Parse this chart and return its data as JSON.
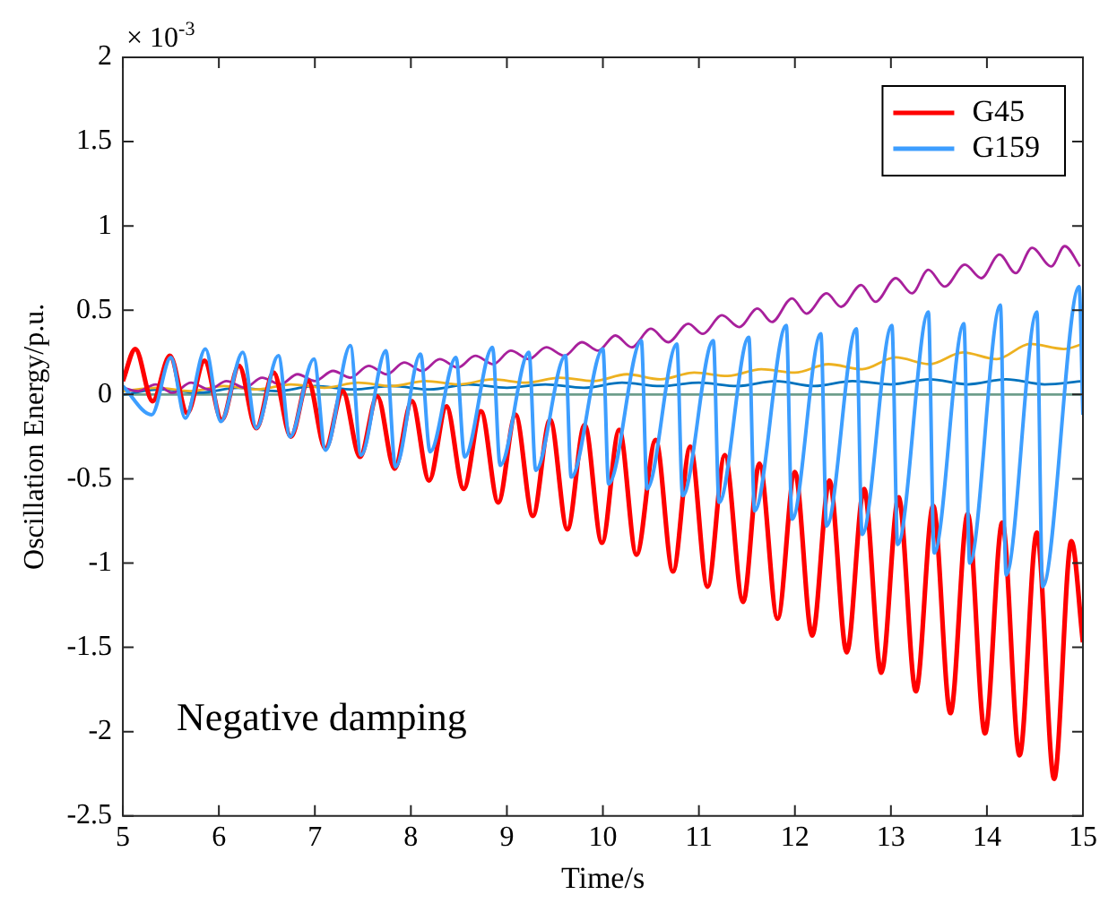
{
  "chart_data": {
    "type": "line",
    "xlabel": "Time/s",
    "ylabel": "Oscillation Energy/p.u.",
    "annotations": [
      "× 10$^{-3}$",
      "Negative damping"
    ],
    "xlim": [
      5,
      15
    ],
    "xticks": [
      5,
      6,
      7,
      8,
      9,
      10,
      11,
      12,
      13,
      14,
      15
    ],
    "ylim": [
      -2.5,
      2
    ],
    "yticks": [
      -2.5,
      -2,
      -1.5,
      -1,
      -0.5,
      0,
      0.5,
      1,
      1.5,
      2
    ],
    "grid": false,
    "legend": "top right",
    "marker": "none",
    "line_style": "solid",
    "series": [
      {
        "name": "G45",
        "color": "#ff0000",
        "x": [
          5,
          5.13,
          5.31,
          5.49,
          5.67,
          5.85,
          6.03,
          6.21,
          6.39,
          6.57,
          6.75,
          6.93,
          7.11,
          7.29,
          7.47,
          7.65,
          7.83,
          8.01,
          8.19,
          8.37,
          8.55,
          8.73,
          8.91,
          9.09,
          9.27,
          9.45,
          9.63,
          9.81,
          9.99,
          10.17,
          10.35,
          10.55,
          10.73,
          10.91,
          11.09,
          11.27,
          11.46,
          11.63,
          11.82,
          12,
          12.18,
          12.36,
          12.54,
          12.72,
          12.9,
          13.08,
          13.26,
          13.44,
          13.62,
          13.8,
          13.98,
          14.16,
          14.34,
          14.52,
          14.7,
          14.88,
          15
        ],
        "values": [
          0.08,
          0.27,
          -0.04,
          0.23,
          -0.11,
          0.2,
          -0.15,
          0.17,
          -0.2,
          0.13,
          -0.25,
          0.08,
          -0.32,
          0.02,
          -0.37,
          -0.01,
          -0.44,
          -0.04,
          -0.51,
          -0.07,
          -0.56,
          -0.1,
          -0.64,
          -0.12,
          -0.72,
          -0.15,
          -0.8,
          -0.18,
          -0.88,
          -0.21,
          -0.95,
          -0.27,
          -1.05,
          -0.31,
          -1.14,
          -0.36,
          -1.23,
          -0.41,
          -1.33,
          -0.46,
          -1.43,
          -0.51,
          -1.53,
          -0.56,
          -1.65,
          -0.61,
          -1.76,
          -0.66,
          -1.89,
          -0.71,
          -2.01,
          -0.76,
          -2.14,
          -0.82,
          -2.28,
          -0.87,
          -1.47
        ]
      },
      {
        "name": "G159",
        "color": "#3d9eff",
        "x": [
          5,
          5.3,
          5.5,
          5.65,
          5.86,
          6.02,
          6.25,
          6.39,
          6.62,
          6.74,
          6.99,
          7.11,
          7.37,
          7.48,
          7.74,
          7.84,
          8.1,
          8.2,
          8.47,
          8.56,
          8.85,
          8.93,
          9.23,
          9.3,
          9.61,
          9.67,
          10,
          10.06,
          10.4,
          10.46,
          10.77,
          10.83,
          11.15,
          11.21,
          11.52,
          11.58,
          11.91,
          11.97,
          12.27,
          12.33,
          12.64,
          12.7,
          13.01,
          13.07,
          13.39,
          13.45,
          13.76,
          13.82,
          14.14,
          14.2,
          14.52,
          14.58,
          14.96,
          15
        ],
        "values": [
          0.05,
          -0.12,
          0.22,
          -0.14,
          0.27,
          -0.16,
          0.25,
          -0.2,
          0.23,
          -0.25,
          0.21,
          -0.33,
          0.29,
          -0.36,
          0.26,
          -0.43,
          0.24,
          -0.34,
          0.22,
          -0.37,
          0.28,
          -0.42,
          0.25,
          -0.45,
          0.23,
          -0.49,
          0.27,
          -0.53,
          0.32,
          -0.56,
          0.3,
          -0.6,
          0.32,
          -0.64,
          0.34,
          -0.69,
          0.41,
          -0.74,
          0.36,
          -0.78,
          0.39,
          -0.83,
          0.41,
          -0.89,
          0.49,
          -0.94,
          0.42,
          -1,
          0.53,
          -1.07,
          0.49,
          -1.14,
          0.64,
          -0.12
        ]
      },
      {
        "color": "#a8209c",
        "x": [
          5,
          5.16,
          5.34,
          5.52,
          5.71,
          5.9,
          6.08,
          6.27,
          6.45,
          6.64,
          6.82,
          7,
          7.19,
          7.37,
          7.56,
          7.75,
          7.93,
          8.12,
          8.3,
          8.49,
          8.67,
          8.86,
          9.04,
          9.23,
          9.41,
          9.6,
          9.78,
          9.95,
          10.13,
          10.3,
          10.5,
          10.68,
          10.89,
          11.04,
          11.24,
          11.42,
          11.61,
          11.76,
          11.97,
          12.12,
          12.33,
          12.48,
          12.69,
          12.84,
          13.05,
          13.22,
          13.39,
          13.56,
          13.77,
          13.94,
          14.13,
          14.3,
          14.47,
          14.67,
          14.81,
          14.97
        ],
        "values": [
          0.04,
          0.02,
          0.06,
          0.01,
          0.07,
          0.03,
          0.08,
          0.04,
          0.1,
          0.06,
          0.12,
          0.08,
          0.14,
          0.1,
          0.17,
          0.12,
          0.19,
          0.14,
          0.21,
          0.16,
          0.23,
          0.18,
          0.26,
          0.21,
          0.28,
          0.23,
          0.31,
          0.26,
          0.35,
          0.28,
          0.39,
          0.31,
          0.42,
          0.36,
          0.47,
          0.4,
          0.51,
          0.43,
          0.57,
          0.48,
          0.6,
          0.52,
          0.65,
          0.55,
          0.69,
          0.6,
          0.74,
          0.64,
          0.77,
          0.69,
          0.83,
          0.72,
          0.87,
          0.76,
          0.88,
          0.76
        ]
      },
      {
        "color": "#edb120",
        "x": [
          5,
          5.35,
          5.7,
          6.05,
          6.4,
          6.75,
          7.1,
          7.45,
          7.8,
          8.15,
          8.5,
          8.85,
          9.2,
          9.55,
          9.9,
          10.25,
          10.6,
          10.95,
          11.3,
          11.65,
          12,
          12.35,
          12.7,
          13.05,
          13.4,
          13.75,
          14.1,
          14.45,
          14.8,
          15
        ],
        "values": [
          0.02,
          0.04,
          0.02,
          0.05,
          0.03,
          0.06,
          0.04,
          0.07,
          0.05,
          0.08,
          0.06,
          0.09,
          0.07,
          0.1,
          0.08,
          0.12,
          0.09,
          0.13,
          0.11,
          0.15,
          0.13,
          0.18,
          0.15,
          0.22,
          0.18,
          0.25,
          0.21,
          0.3,
          0.27,
          0.3
        ]
      },
      {
        "color": "#0072bd",
        "x": [
          5,
          5.4,
          5.8,
          6.2,
          6.6,
          7,
          7.4,
          7.8,
          8.2,
          8.6,
          9,
          9.4,
          9.8,
          10.2,
          10.6,
          11,
          11.4,
          11.8,
          12.2,
          12.6,
          13,
          13.4,
          13.8,
          14.2,
          14.6,
          15
        ],
        "values": [
          0,
          0.03,
          0.01,
          0.04,
          0.02,
          0.05,
          0.03,
          0.05,
          0.03,
          0.06,
          0.04,
          0.06,
          0.04,
          0.07,
          0.05,
          0.07,
          0.05,
          0.08,
          0.05,
          0.08,
          0.06,
          0.09,
          0.06,
          0.09,
          0.06,
          0.08
        ]
      },
      {
        "color": "#6e9e8c",
        "x": [
          5,
          15
        ],
        "values": [
          0,
          0
        ]
      }
    ]
  }
}
